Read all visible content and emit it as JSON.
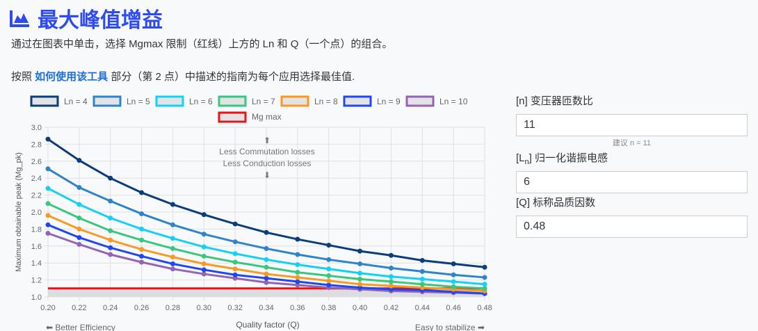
{
  "header": {
    "title": "最大峰值增益",
    "icon": "chart-area-icon",
    "desc1": "通过在图表中单击，选择 Mgmax 限制（红线）上方的 Ln 和 Q（一个点）的组合。",
    "desc2_before": "按照 ",
    "desc2_link": "如何使用该工具",
    "desc2_after": " 部分（第 2 点）中描述的指南为每个应用选择最佳值."
  },
  "form": {
    "n_label": "[n] 变压器匝数比",
    "n_value": "11",
    "n_hint": "建议 n = 11",
    "ln_label_pre": "[L",
    "ln_label_sub": "n",
    "ln_label_post": "] 归一化谐振电感",
    "ln_value": "6",
    "q_label": "[Q] 标称品质因数",
    "q_value": "0.48"
  },
  "chart_data": {
    "type": "line",
    "xlabel": "Quality factor (Q)",
    "ylabel": "Maximum obtainable peak (Mg_pk)",
    "x": [
      0.2,
      0.22,
      0.24,
      0.26,
      0.28,
      0.3,
      0.32,
      0.34,
      0.36,
      0.38,
      0.4,
      0.42,
      0.44,
      0.46,
      0.48
    ],
    "xticks": [
      "0.20",
      "0.22",
      "0.24",
      "0.26",
      "0.28",
      "0.30",
      "0.32",
      "0.34",
      "0.36",
      "0.38",
      "0.40",
      "0.42",
      "0.44",
      "0.46",
      "0.48"
    ],
    "yticks": [
      "1.0",
      "1.2",
      "1.4",
      "1.6",
      "1.8",
      "2.0",
      "2.2",
      "2.4",
      "2.6",
      "2.8",
      "3.0"
    ],
    "xlim": [
      0.2,
      0.48
    ],
    "ylim": [
      1.0,
      3.0
    ],
    "grid": true,
    "legend": "top",
    "series": [
      {
        "name": "Ln = 4",
        "color": "#0b3d7a",
        "values": [
          2.86,
          2.61,
          2.4,
          2.23,
          2.09,
          1.97,
          1.86,
          1.76,
          1.68,
          1.61,
          1.54,
          1.49,
          1.43,
          1.39,
          1.35
        ]
      },
      {
        "name": "Ln = 5",
        "color": "#2f84c8",
        "values": [
          2.51,
          2.29,
          2.13,
          1.98,
          1.85,
          1.74,
          1.65,
          1.57,
          1.5,
          1.44,
          1.39,
          1.34,
          1.3,
          1.26,
          1.23
        ]
      },
      {
        "name": "Ln = 6",
        "color": "#14d0f5",
        "values": [
          2.28,
          2.09,
          1.93,
          1.8,
          1.69,
          1.59,
          1.51,
          1.44,
          1.38,
          1.33,
          1.28,
          1.24,
          1.21,
          1.18,
          1.15
        ]
      },
      {
        "name": "Ln = 7",
        "color": "#37c77f",
        "values": [
          2.1,
          1.93,
          1.78,
          1.67,
          1.57,
          1.48,
          1.41,
          1.35,
          1.29,
          1.25,
          1.21,
          1.18,
          1.15,
          1.12,
          1.1
        ]
      },
      {
        "name": "Ln = 8",
        "color": "#f79a22",
        "values": [
          1.96,
          1.8,
          1.67,
          1.56,
          1.47,
          1.39,
          1.33,
          1.27,
          1.23,
          1.19,
          1.15,
          1.13,
          1.11,
          1.09,
          1.07
        ]
      },
      {
        "name": "Ln = 9",
        "color": "#1f47f0",
        "values": [
          1.85,
          1.7,
          1.58,
          1.48,
          1.39,
          1.32,
          1.26,
          1.22,
          1.18,
          1.14,
          1.11,
          1.09,
          1.08,
          1.06,
          1.04
        ]
      },
      {
        "name": "Ln = 10",
        "color": "#9463b6",
        "values": [
          1.75,
          1.62,
          1.5,
          1.41,
          1.33,
          1.27,
          1.22,
          1.17,
          1.14,
          1.11,
          1.09,
          1.07,
          1.06,
          1.05,
          1.04
        ]
      }
    ],
    "limit": {
      "name": "Mg max",
      "color": "#ee1111",
      "value": 1.1
    },
    "annotations": {
      "up_arrow": "⬆",
      "line1": "Less Commutation losses",
      "line2": "Less Conduction losses",
      "down_arrow": "⬇",
      "left": "⬅ Better Efficiency",
      "right": "Easy to stabilize ➡"
    }
  }
}
